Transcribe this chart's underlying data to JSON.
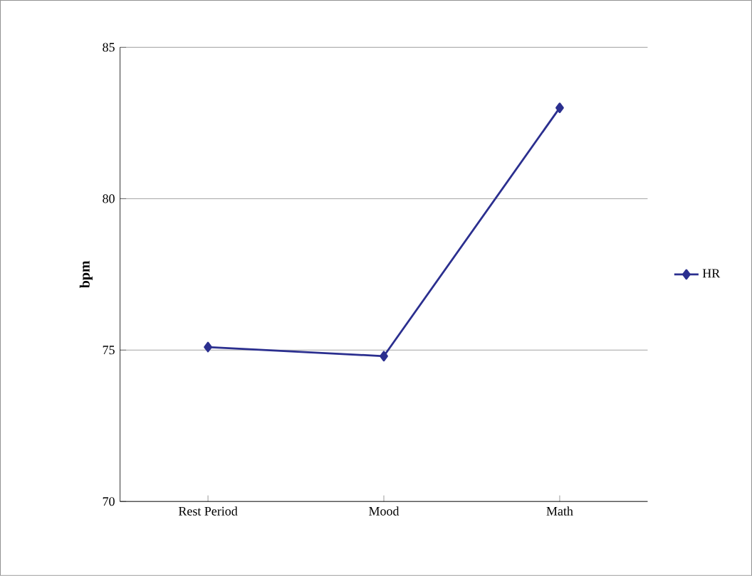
{
  "chart_data": {
    "type": "line",
    "ylabel": "bpm",
    "categories": [
      "Rest Period",
      "Mood",
      "Math"
    ],
    "series": [
      {
        "name": "HR",
        "color": "#2b2f8f",
        "values": [
          75.1,
          74.8,
          83.0
        ]
      }
    ],
    "ylim": [
      70,
      85
    ],
    "yticks": [
      70,
      75,
      80,
      85
    ],
    "grid": "y",
    "legend": "right",
    "marker": "diamond",
    "line_style": "solid"
  }
}
